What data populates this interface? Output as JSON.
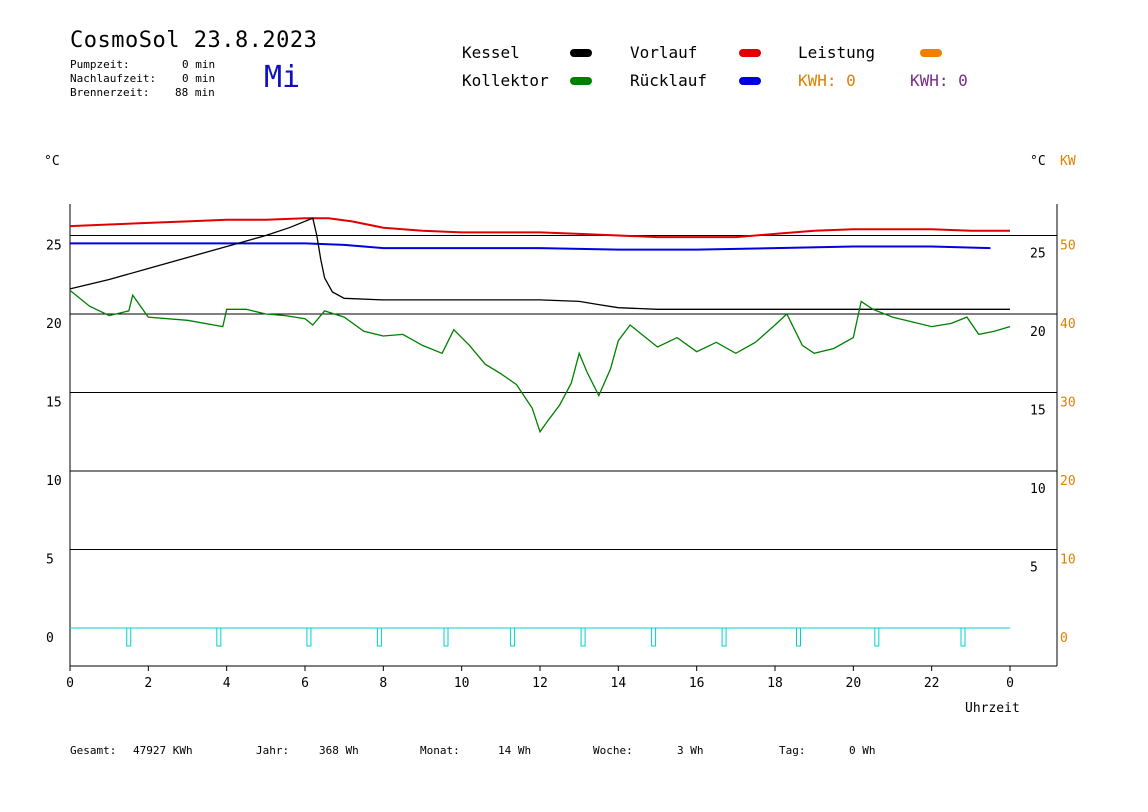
{
  "header": {
    "title": "CosmoSol 23.8.2023",
    "weekday": "Mi",
    "stats": [
      {
        "label": "Pumpzeit:",
        "value": "0 min"
      },
      {
        "label": "Nachlaufzeit:",
        "value": "0 min"
      },
      {
        "label": "Brennerzeit:",
        "value": "88 min"
      }
    ]
  },
  "legend": {
    "items": [
      {
        "label": "Kessel",
        "color": "#000000"
      },
      {
        "label": "Vorlauf",
        "color": "#e00000"
      },
      {
        "label": "Leistung",
        "color": "#f08000"
      },
      {
        "label": "Kollektor",
        "color": "#008000"
      },
      {
        "label": "Rücklauf",
        "color": "#0000e0"
      }
    ],
    "kwh_left": "KWH: 0",
    "kwh_right": "KWH: 0"
  },
  "axes": {
    "left_unit": "°C",
    "right_unit_c": "°C",
    "right_unit_kw": "KW",
    "xlabel": "Uhrzeit"
  },
  "footer": {
    "gesamt_label": "Gesamt:",
    "gesamt_value": "47927 KWh",
    "jahr_label": "Jahr:",
    "jahr_value": "368 Wh",
    "monat_label": "Monat:",
    "monat_value": "14 Wh",
    "woche_label": "Woche:",
    "woche_value": "3 Wh",
    "tag_label": "Tag:",
    "tag_value": "0 Wh"
  },
  "chart_data": {
    "type": "line",
    "title": "CosmoSol 23.8.2023",
    "xlabel": "Uhrzeit",
    "xlim": [
      0,
      24
    ],
    "ylim": [
      -3,
      26.5
    ],
    "x_ticks": [
      "0",
      "2",
      "4",
      "6",
      "8",
      "10",
      "12",
      "14",
      "16",
      "18",
      "20",
      "22",
      "0"
    ],
    "y_left_ticks": [
      25,
      20,
      15,
      10,
      5,
      0
    ],
    "y_right_c_ticks": [
      25,
      20,
      15,
      10,
      5
    ],
    "y_right_kw_ticks": [
      50,
      40,
      30,
      20,
      10,
      0
    ],
    "grid": true,
    "series": [
      {
        "name": "Vorlauf",
        "color": "#e00000",
        "x": [
          0,
          1,
          2,
          3,
          4,
          5,
          6,
          6.6,
          7.2,
          8,
          9,
          10,
          11,
          12,
          13,
          14,
          15,
          16,
          17,
          18,
          19,
          20,
          21,
          22,
          23,
          24
        ],
        "y": [
          25.6,
          25.7,
          25.8,
          25.9,
          26,
          26,
          26.1,
          26.1,
          25.9,
          25.5,
          25.3,
          25.2,
          25.2,
          25.2,
          25.1,
          25.0,
          24.9,
          24.9,
          24.9,
          25.1,
          25.3,
          25.4,
          25.4,
          25.4,
          25.3,
          25.3
        ]
      },
      {
        "name": "Rücklauf",
        "color": "#0000e0",
        "x": [
          0,
          2,
          4,
          6,
          7,
          8,
          10,
          12,
          14,
          16,
          18,
          20,
          22,
          23.5
        ],
        "y": [
          24.5,
          24.5,
          24.5,
          24.5,
          24.4,
          24.2,
          24.2,
          24.2,
          24.1,
          24.1,
          24.2,
          24.3,
          24.3,
          24.2
        ]
      },
      {
        "name": "Kessel",
        "color": "#000000",
        "x": [
          0,
          1,
          2,
          3,
          4,
          5,
          5.6,
          6.2,
          6.3,
          6.4,
          6.5,
          6.7,
          7,
          8,
          9,
          10,
          11,
          12,
          13,
          13.5,
          14,
          15,
          16,
          18,
          20,
          22,
          24
        ],
        "y": [
          21.6,
          22.2,
          22.9,
          23.6,
          24.3,
          25.0,
          25.5,
          26.1,
          25.0,
          23.5,
          22.3,
          21.4,
          21.0,
          20.9,
          20.9,
          20.9,
          20.9,
          20.9,
          20.8,
          20.6,
          20.4,
          20.3,
          20.3,
          20.3,
          20.3,
          20.3,
          20.3
        ]
      },
      {
        "name": "Kollektor",
        "color": "#008000",
        "x": [
          0,
          0.5,
          1,
          1.5,
          1.6,
          2,
          3,
          3.9,
          4,
          4.5,
          5,
          5.5,
          6,
          6.2,
          6.5,
          7,
          7.5,
          8,
          8.5,
          9,
          9.5,
          9.8,
          10.2,
          10.6,
          11,
          11.4,
          11.8,
          12,
          12.2,
          12.5,
          12.8,
          13,
          13.2,
          13.5,
          13.8,
          14,
          14.3,
          14.8,
          15,
          15.5,
          16,
          16.5,
          17,
          17.5,
          18,
          18.3,
          18.7,
          19,
          19.5,
          20,
          20.2,
          20.5,
          21,
          21.5,
          22,
          22.5,
          22.9,
          23.2,
          23.6,
          24
        ],
        "y": [
          21.5,
          20.5,
          19.9,
          20.2,
          21.2,
          19.8,
          19.6,
          19.2,
          20.3,
          20.3,
          20.0,
          19.9,
          19.7,
          19.3,
          20.2,
          19.8,
          18.9,
          18.6,
          18.7,
          18.0,
          17.5,
          19.0,
          18.0,
          16.8,
          16.2,
          15.5,
          14.0,
          12.5,
          13.2,
          14.2,
          15.6,
          17.5,
          16.3,
          14.8,
          16.5,
          18.3,
          19.3,
          18.3,
          17.9,
          18.5,
          17.6,
          18.2,
          17.5,
          18.2,
          19.3,
          20.0,
          18.0,
          17.5,
          17.8,
          18.5,
          20.8,
          20.3,
          19.8,
          19.5,
          19.2,
          19.4,
          19.8,
          18.7,
          18.9,
          19.2
        ]
      }
    ],
    "pulses": {
      "name": "Brenner",
      "color": "#00d0d0",
      "x": [
        1.5,
        3.8,
        6.1,
        7.9,
        9.6,
        11.3,
        13.1,
        14.9,
        16.7,
        18.6,
        20.6,
        22.8
      ]
    }
  }
}
